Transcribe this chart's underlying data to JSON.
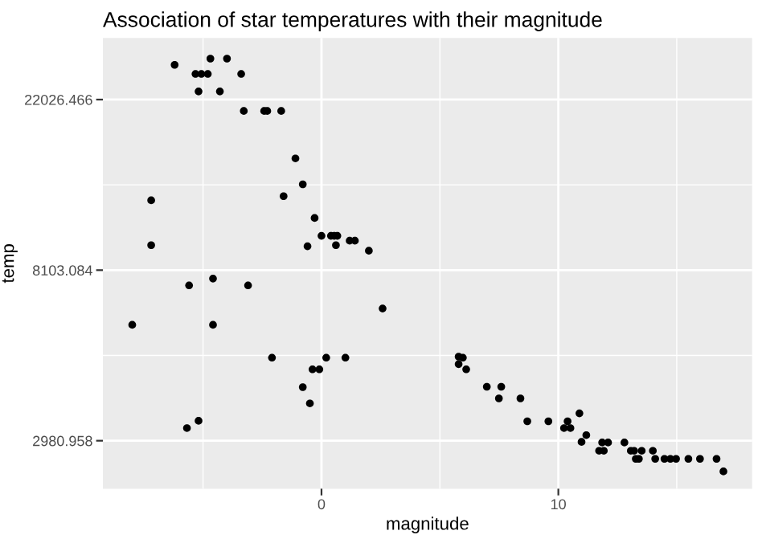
{
  "chart_data": {
    "type": "scatter",
    "title": "Association of star temperatures with their magnitude",
    "xlabel": "magnitude",
    "ylabel": "temp",
    "log": "y",
    "grid": true,
    "marker": "circle",
    "xlim": [
      -9.23,
      18.18
    ],
    "xticks": [
      0,
      10
    ],
    "ylim": [
      2250,
      31600
    ],
    "yticks": [
      2980.958,
      8103.084,
      22026.466
    ],
    "series": [
      {
        "color": "#000000",
        "x": [
          -6.2,
          -5.32,
          -5.07,
          -4.8,
          -4.69,
          -3.99,
          -3.39,
          -5.19,
          -4.29,
          -3.28,
          -2.42,
          -2.29,
          -1.7,
          -1.1,
          -0.79,
          -1.6,
          -7.19,
          -7.19,
          -0.29,
          -0.59,
          0.0,
          0.4,
          0.54,
          0.67,
          0.61,
          1.19,
          1.41,
          2.0,
          -5.59,
          -4.58,
          -3.1,
          -7.99,
          -4.58,
          2.58,
          -2.09,
          0.2,
          1.01,
          -0.38,
          -0.09,
          -0.79,
          -0.49,
          -5.68,
          -5.19,
          5.79,
          5.97,
          5.79,
          6.11,
          6.98,
          7.59,
          7.49,
          8.4,
          8.69,
          9.58,
          10.24,
          10.51,
          10.39,
          10.89,
          11.18,
          10.98,
          11.72,
          11.92,
          11.85,
          12.1,
          12.79,
          13.06,
          13.2,
          13.52,
          13.27,
          13.4,
          13.99,
          14.09,
          14.48,
          14.73,
          14.97,
          15.49,
          15.98,
          16.68,
          16.97
        ],
        "values": [
          27000,
          25600,
          25600,
          25600,
          28000,
          28000,
          25600,
          23100,
          23100,
          20600,
          20600,
          20600,
          20600,
          15600,
          13400,
          12500,
          12200,
          9380,
          11000,
          9320,
          9910,
          9910,
          9910,
          9910,
          9380,
          9630,
          9630,
          9080,
          7410,
          7710,
          7410,
          5880,
          5880,
          6470,
          4850,
          4850,
          4850,
          4530,
          4530,
          4080,
          3710,
          3210,
          3350,
          4880,
          4850,
          4670,
          4530,
          4090,
          4090,
          3820,
          3820,
          3340,
          3340,
          3210,
          3210,
          3340,
          3500,
          3080,
          2960,
          2810,
          2810,
          2950,
          2950,
          2950,
          2810,
          2810,
          2810,
          2680,
          2680,
          2810,
          2680,
          2680,
          2680,
          2680,
          2680,
          2680,
          2680,
          2490
        ]
      }
    ]
  }
}
